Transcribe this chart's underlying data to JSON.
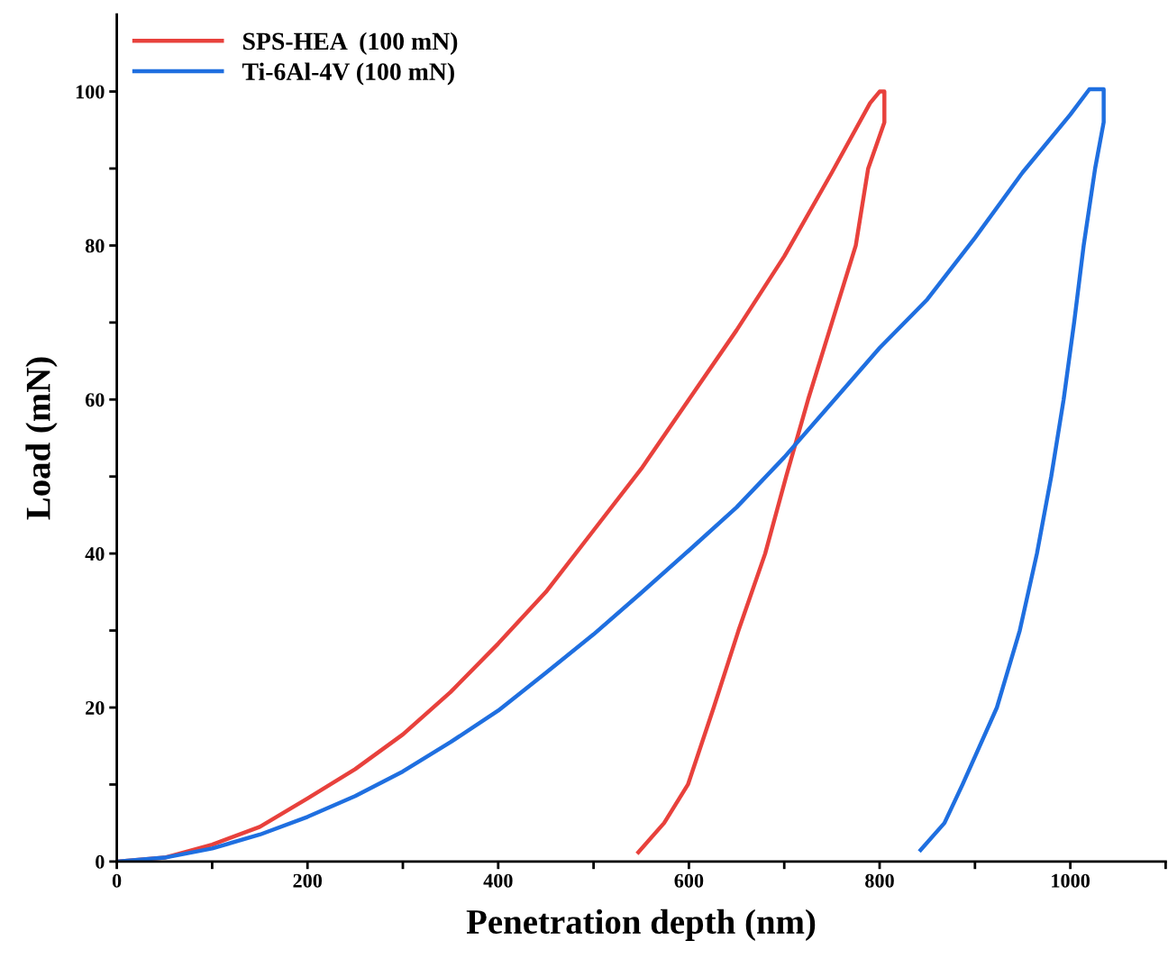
{
  "chart_data": {
    "type": "line",
    "xlabel": "Penetration depth (nm)",
    "ylabel": "Load (mN)",
    "xlim": [
      0,
      1100
    ],
    "ylim": [
      0,
      110
    ],
    "xticks": [
      0,
      {
        "value": 100,
        "label": null
      },
      200,
      {
        "value": 300,
        "label": null
      },
      400,
      {
        "value": 500,
        "label": null
      },
      600,
      {
        "value": 700,
        "label": null
      },
      800,
      {
        "value": 900,
        "label": null
      },
      1000,
      {
        "value": 1100,
        "label": null
      }
    ],
    "yticks": [
      0,
      {
        "value": 10,
        "label": null
      },
      20,
      {
        "value": 30,
        "label": null
      },
      40,
      {
        "value": 50,
        "label": null
      },
      60,
      {
        "value": 70,
        "label": null
      },
      80,
      {
        "value": 90,
        "label": null
      },
      100
    ],
    "legend": "top left",
    "grid": false,
    "marker": "none",
    "line_style": "solid",
    "series": [
      {
        "name": "SPS-HEA  (100 mN)",
        "color": "#e8413c",
        "x": [
          0,
          50,
          100,
          150,
          200,
          250,
          300,
          350,
          400,
          450,
          500,
          550,
          600,
          650,
          700,
          750,
          790,
          800,
          805,
          805,
          788,
          775,
          750,
          725,
          702,
          680,
          652,
          626,
          599,
          574,
          547
        ],
        "values": [
          0,
          0.5,
          2.2,
          4.5,
          8.2,
          12,
          16.5,
          22,
          28.3,
          35,
          43,
          51,
          60,
          69,
          78.6,
          89.5,
          98.5,
          100,
          100,
          96,
          90,
          80,
          70,
          60,
          50,
          40,
          30,
          20,
          10,
          5,
          1.2
        ]
      },
      {
        "name": "Ti-6Al-4V (100 mN)",
        "color": "#1f6fe0",
        "x": [
          0,
          50,
          100,
          150,
          200,
          250,
          300,
          350,
          400,
          450,
          500,
          550,
          600,
          650,
          700,
          750,
          800,
          850,
          900,
          950,
          1000,
          1020,
          1035,
          1035,
          1026,
          1014,
          1004,
          993,
          980,
          965,
          947,
          923,
          887,
          868,
          843
        ],
        "values": [
          0,
          0.5,
          1.7,
          3.5,
          5.8,
          8.5,
          11.7,
          15.5,
          19.6,
          24.5,
          29.5,
          34.9,
          40.4,
          46,
          52.5,
          59.6,
          66.7,
          73,
          81,
          89.5,
          97,
          100.3,
          100.3,
          96,
          90,
          80,
          70,
          60,
          50,
          40,
          30,
          20,
          10,
          5,
          1.5
        ]
      }
    ]
  }
}
